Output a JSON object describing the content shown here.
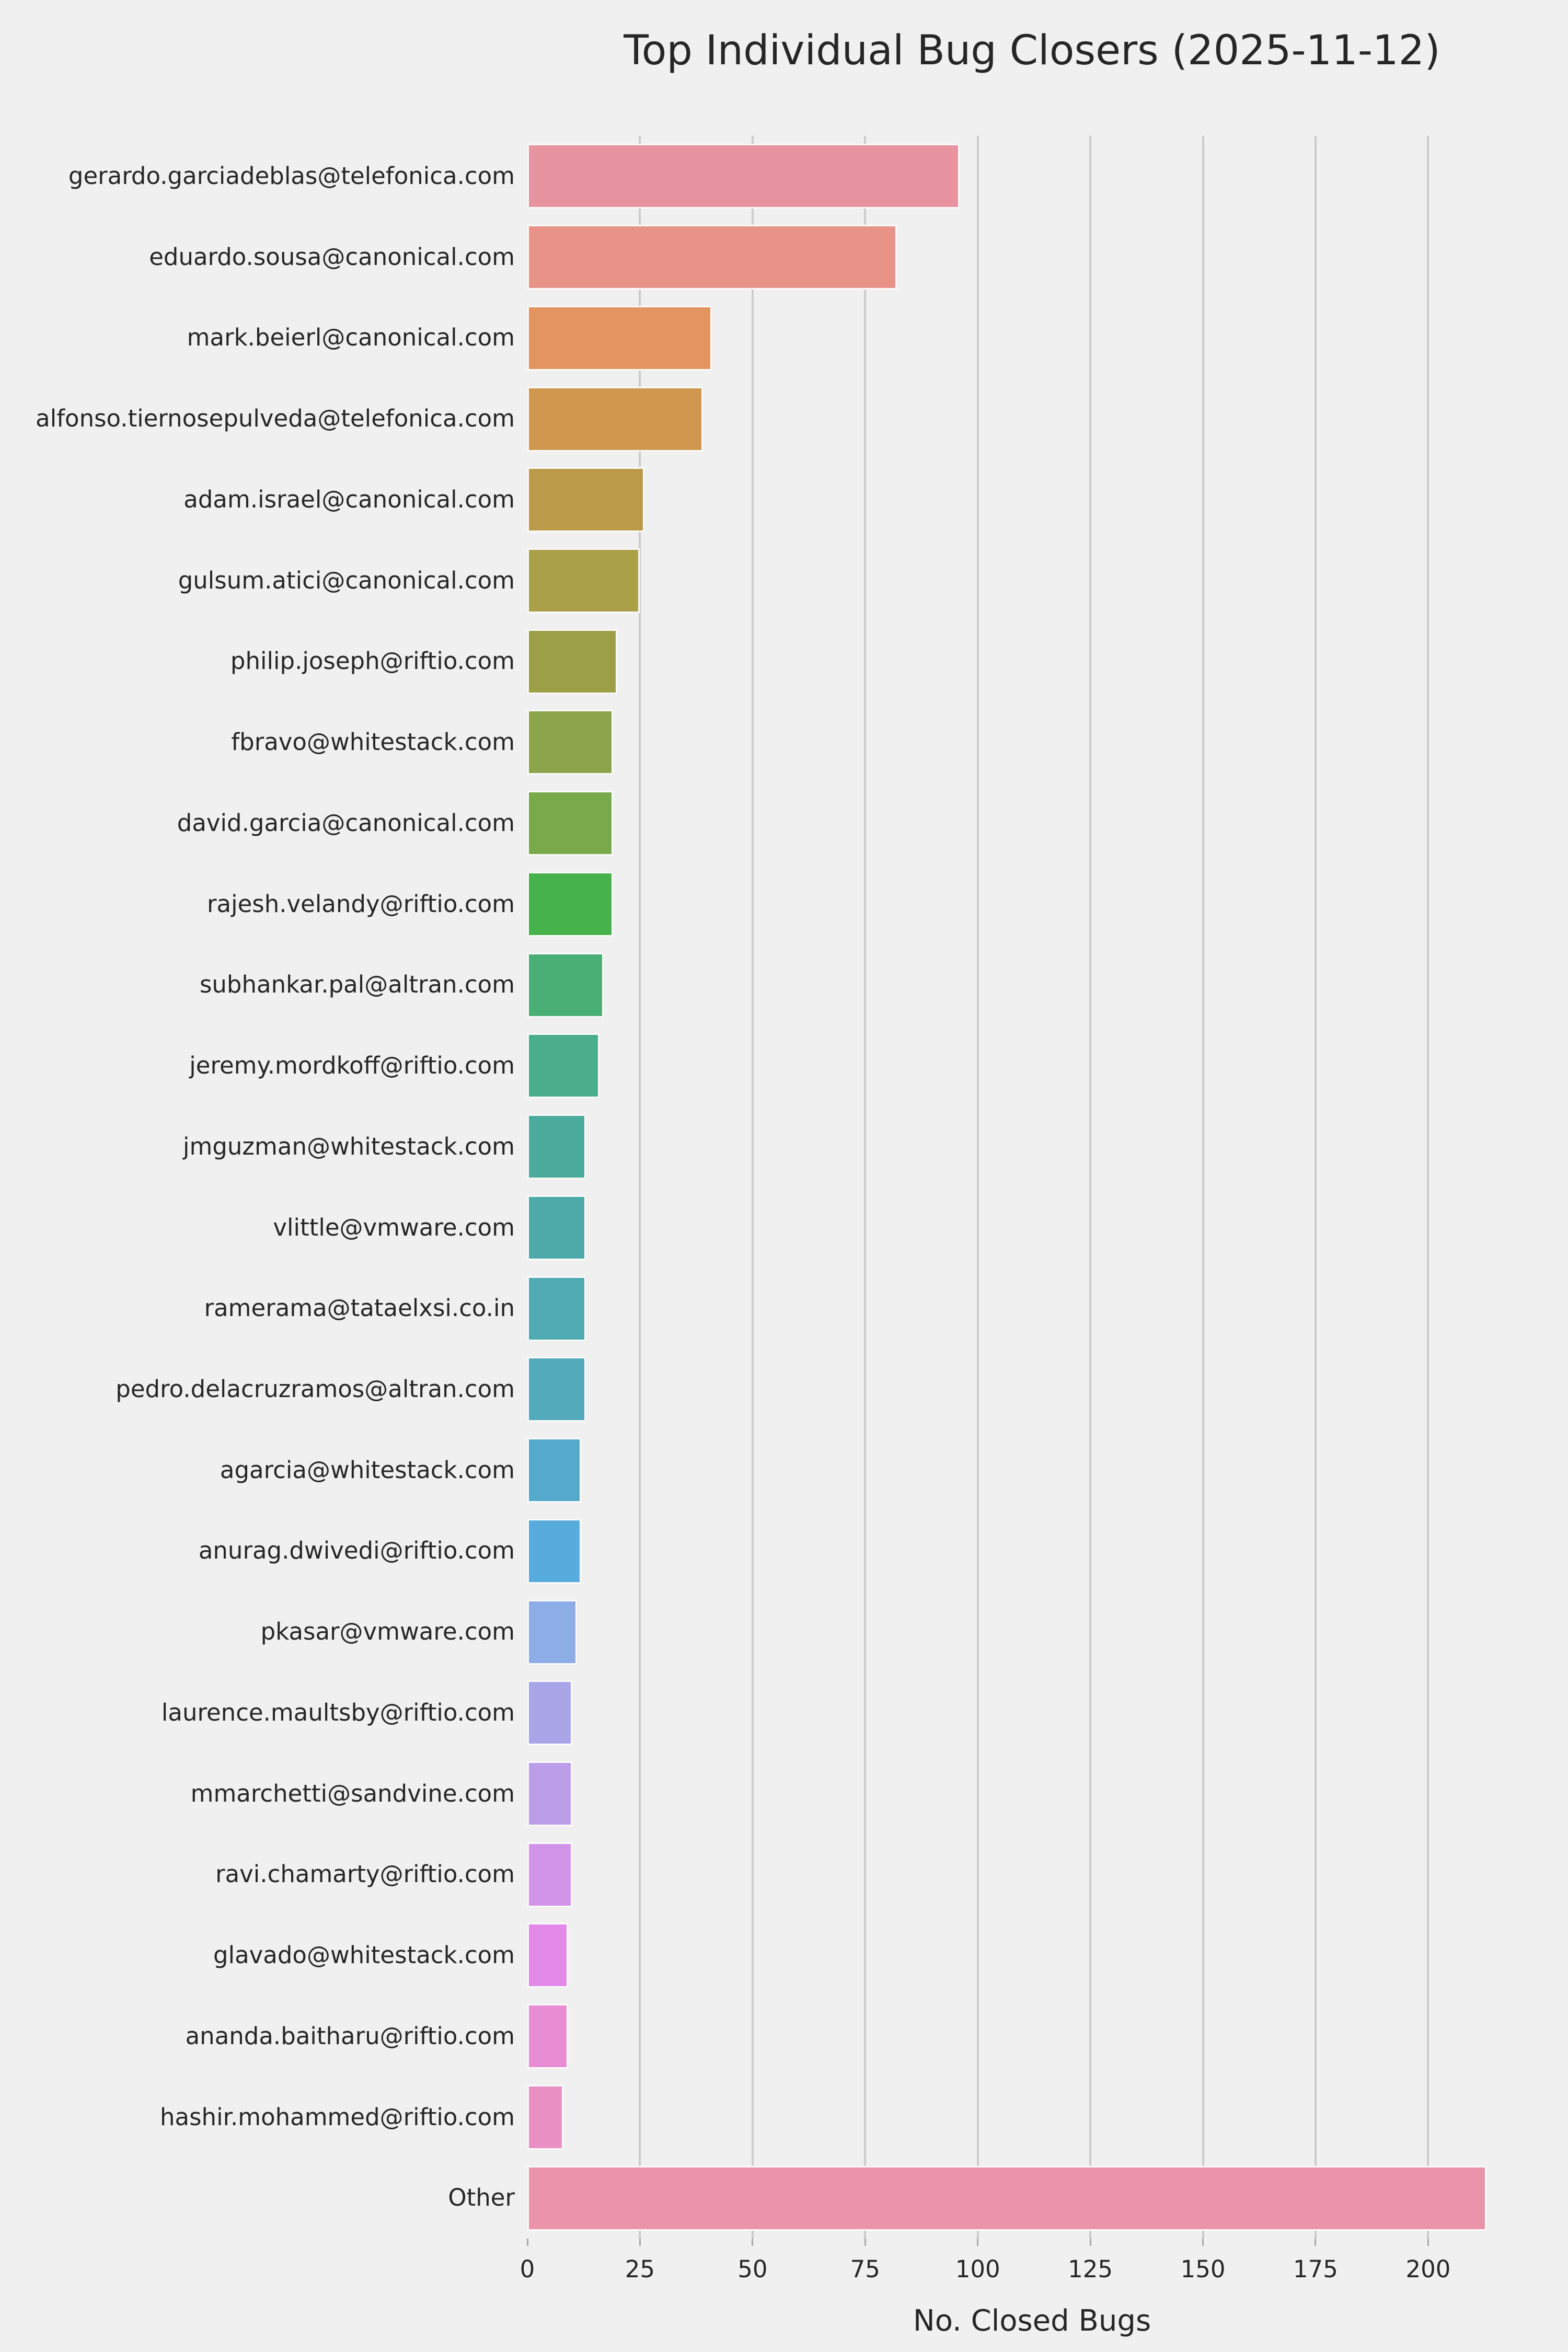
{
  "title": "Top Individual Bug Closers (2025-11-12)",
  "chart_data": {
    "type": "bar",
    "orientation": "horizontal",
    "title": "Top Individual Bug Closers (2025-11-12)",
    "xlabel": "No. Closed Bugs",
    "ylabel": "",
    "xlim": [
      0,
      224
    ],
    "xticks": [
      0,
      25,
      50,
      75,
      100,
      125,
      150,
      175,
      200
    ],
    "grid": true,
    "legend": false,
    "background_color": "#f0f0f0",
    "gridline_color": "#cccccc",
    "categories": [
      "gerardo.garciadeblas@telefonica.com",
      "eduardo.sousa@canonical.com",
      "mark.beierl@canonical.com",
      "alfonso.tiernosepulveda@telefonica.com",
      "adam.israel@canonical.com",
      "gulsum.atici@canonical.com",
      "philip.joseph@riftio.com",
      "fbravo@whitestack.com",
      "david.garcia@canonical.com",
      "rajesh.velandy@riftio.com",
      "subhankar.pal@altran.com",
      "jeremy.mordkoff@riftio.com",
      "jmguzman@whitestack.com",
      "vlittle@vmware.com",
      "ramerama@tataelxsi.co.in",
      "pedro.delacruzramos@altran.com",
      "agarcia@whitestack.com",
      "anurag.dwivedi@riftio.com",
      "pkasar@vmware.com",
      "laurence.maultsby@riftio.com",
      "mmarchetti@sandvine.com",
      "ravi.chamarty@riftio.com",
      "glavado@whitestack.com",
      "ananda.baitharu@riftio.com",
      "hashir.mohammed@riftio.com",
      "Other"
    ],
    "values": [
      96,
      82,
      41,
      39,
      26,
      25,
      20,
      19,
      19,
      19,
      17,
      16,
      13,
      13,
      13,
      13,
      12,
      12,
      11,
      10,
      10,
      10,
      9,
      9,
      8,
      213
    ],
    "bar_colors": [
      "#e894a0",
      "#e89387",
      "#e29560",
      "#d0984f",
      "#bb9b49",
      "#aaa04a",
      "#9c9f46",
      "#8ca54a",
      "#78aa4c",
      "#46b24c",
      "#49af75",
      "#4aad8c",
      "#4bac9d",
      "#4daaa8",
      "#4fabb1",
      "#52aaba",
      "#55a9cb",
      "#58abdd",
      "#8dade6",
      "#a9a5e8",
      "#bc9dea",
      "#d194e9",
      "#e289ea",
      "#e88cd4",
      "#e890c3",
      "#ea93ab"
    ]
  }
}
